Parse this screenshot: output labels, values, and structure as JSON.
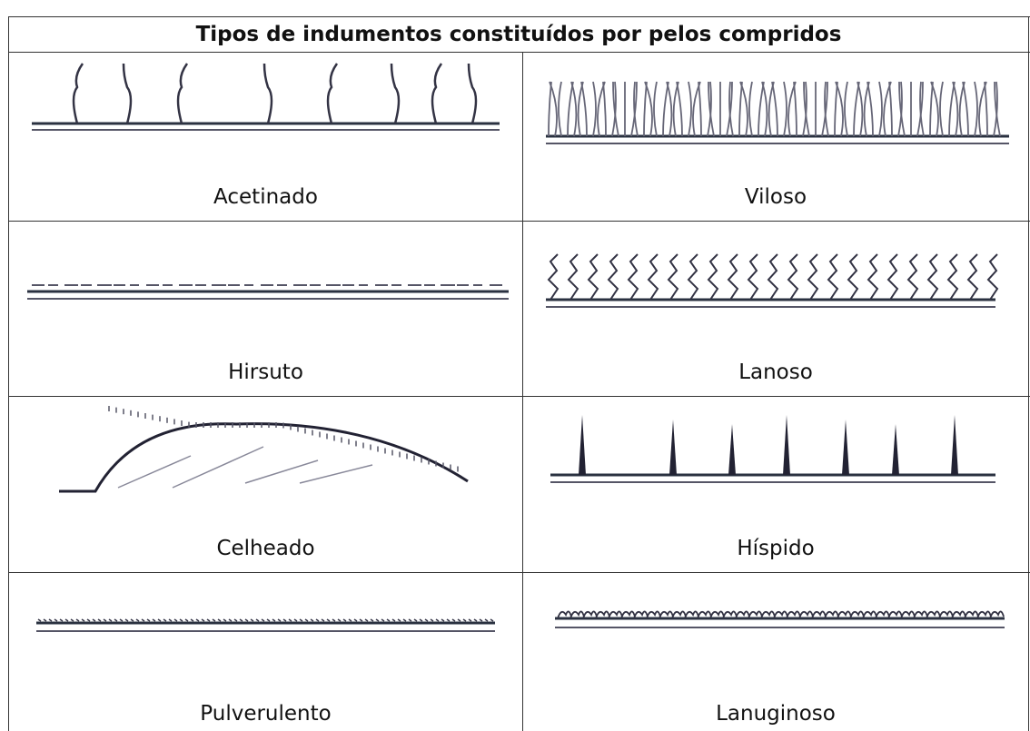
{
  "table": {
    "title": "Tipos de indumentos constituídos por pelos compridos",
    "rows": [
      [
        "Acetinado",
        "Viloso"
      ],
      [
        "Hirsuto",
        "Lanoso"
      ],
      [
        "Celheado",
        "Híspido"
      ],
      [
        "Pulverulento",
        "Lanuginoso"
      ]
    ]
  }
}
